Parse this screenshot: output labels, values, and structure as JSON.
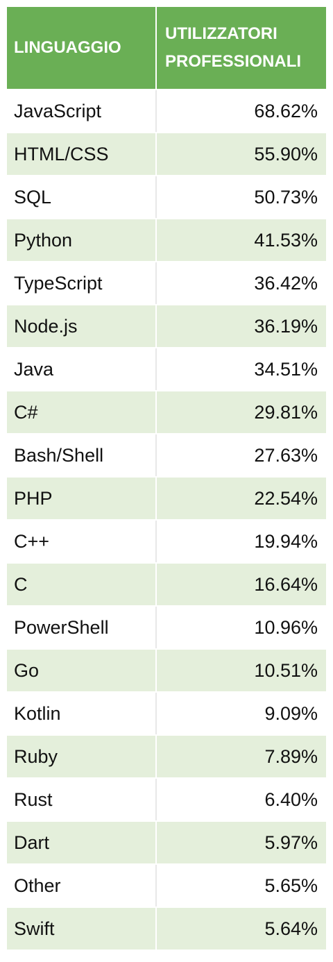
{
  "chart_data": {
    "type": "table",
    "columns": [
      "LINGUAGGIO",
      "UTILIZZATORI PROFESSIONALI"
    ],
    "header_lines": [
      "UTILIZZATORI",
      "PROFESSIONALI"
    ],
    "rows": [
      {
        "language": "JavaScript",
        "value": "68.62%"
      },
      {
        "language": "HTML/CSS",
        "value": "55.90%"
      },
      {
        "language": "SQL",
        "value": "50.73%"
      },
      {
        "language": "Python",
        "value": "41.53%"
      },
      {
        "language": "TypeScript",
        "value": "36.42%"
      },
      {
        "language": "Node.js",
        "value": "36.19%"
      },
      {
        "language": "Java",
        "value": "34.51%"
      },
      {
        "language": "C#",
        "value": "29.81%"
      },
      {
        "language": "Bash/Shell",
        "value": "27.63%"
      },
      {
        "language": "PHP",
        "value": "22.54%"
      },
      {
        "language": "C++",
        "value": "19.94%"
      },
      {
        "language": "C",
        "value": "16.64%"
      },
      {
        "language": "PowerShell",
        "value": "10.96%"
      },
      {
        "language": "Go",
        "value": "10.51%"
      },
      {
        "language": "Kotlin",
        "value": "9.09%"
      },
      {
        "language": "Ruby",
        "value": "7.89%"
      },
      {
        "language": "Rust",
        "value": "6.40%"
      },
      {
        "language": "Dart",
        "value": "5.97%"
      },
      {
        "language": "Other",
        "value": "5.65%"
      },
      {
        "language": "Swift",
        "value": "5.64%"
      }
    ]
  },
  "colors": {
    "header_bg": "#6aaf55",
    "header_text": "#ffffff",
    "stripe": "#e4efdb"
  }
}
